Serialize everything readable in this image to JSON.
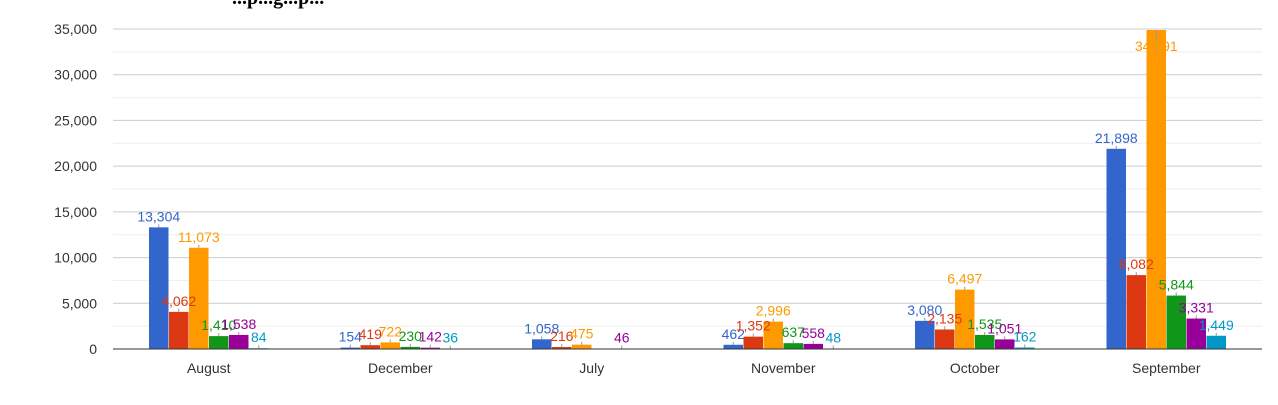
{
  "chart_data": {
    "type": "bar",
    "title": "...p...g...p...",
    "xlabel": "",
    "ylabel": "",
    "ylim": [
      0,
      35000
    ],
    "yticks": [
      "0",
      "5,000",
      "10,000",
      "15,000",
      "20,000",
      "25,000",
      "30,000",
      "35,000"
    ],
    "grid": true,
    "categories": [
      "August",
      "December",
      "July",
      "November",
      "October",
      "September"
    ],
    "series": [
      {
        "color": "#3366cc",
        "values": [
          13304,
          154,
          1058,
          462,
          3080,
          21898
        ],
        "labels": [
          "13,304",
          "154",
          "1,058",
          "462",
          "3,080",
          "21,898"
        ]
      },
      {
        "color": "#dc3912",
        "values": [
          4062,
          419,
          216,
          1352,
          2135,
          8082
        ],
        "labels": [
          "4,062",
          "419",
          "216",
          "1,352",
          "2,135",
          "8,082"
        ]
      },
      {
        "color": "#ff9900",
        "values": [
          11073,
          722,
          475,
          2996,
          6497,
          34891
        ],
        "labels": [
          "11,073",
          "722",
          "475",
          "2,996",
          "6,497",
          "34,891"
        ]
      },
      {
        "color": "#109618",
        "values": [
          1410,
          230,
          0,
          637,
          1535,
          5844
        ],
        "labels": [
          "1,410",
          "230",
          "",
          "637",
          "1,535",
          "5,844"
        ]
      },
      {
        "color": "#990099",
        "values": [
          1538,
          142,
          46,
          558,
          1051,
          3331
        ],
        "labels": [
          "1,538",
          "142",
          "46",
          "558",
          "1,051",
          "3,331"
        ]
      },
      {
        "color": "#0099c6",
        "values": [
          84,
          36,
          0,
          48,
          162,
          1449
        ],
        "labels": [
          "84",
          "36",
          "",
          "48",
          "162",
          "1,449"
        ]
      }
    ]
  }
}
